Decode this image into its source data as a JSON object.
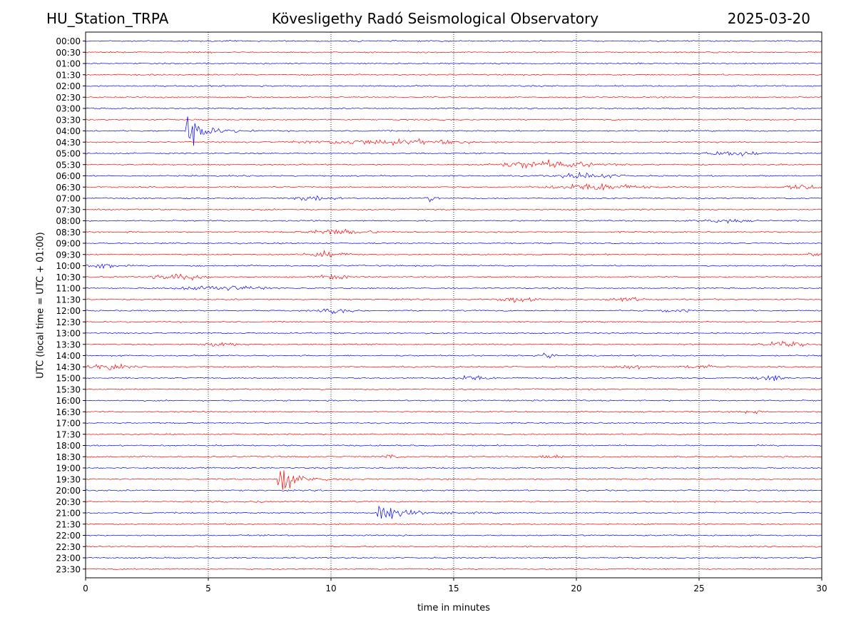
{
  "header": {
    "station": "HU_Station_TRPA",
    "title": "Kövesligethy Radó Seismological Observatory",
    "date": "2025-03-20"
  },
  "chart_data": {
    "type": "line",
    "title": "Kövesligethy Radó Seismological Observatory",
    "xlabel": "time in minutes",
    "ylabel": "UTC (local time = UTC + 01:00)",
    "xlim": [
      0,
      30
    ],
    "xticks": [
      "0",
      "5",
      "10",
      "15",
      "20",
      "25",
      "30"
    ],
    "grid": "vertical dotted at 5-minute intervals",
    "colors": [
      "#0000ff",
      "#ff0000"
    ],
    "rows": [
      "00:00",
      "00:30",
      "01:00",
      "01:30",
      "02:00",
      "02:30",
      "03:00",
      "03:30",
      "04:00",
      "04:30",
      "05:00",
      "05:30",
      "06:00",
      "06:30",
      "07:00",
      "07:30",
      "08:00",
      "08:30",
      "09:00",
      "09:30",
      "10:00",
      "10:30",
      "11:00",
      "11:30",
      "12:00",
      "12:30",
      "13:00",
      "13:30",
      "14:00",
      "14:30",
      "15:00",
      "15:30",
      "16:00",
      "16:30",
      "17:00",
      "17:30",
      "18:00",
      "18:30",
      "19:00",
      "19:30",
      "20:00",
      "20:30",
      "21:00",
      "21:30",
      "22:00",
      "22:30",
      "23:00",
      "23:30"
    ],
    "events": [
      {
        "row": "04:00",
        "start": 4.1,
        "duration": 3.0,
        "amplitude": 1.0,
        "type": "quake"
      },
      {
        "row": "04:30",
        "start": 8.5,
        "duration": 7.5,
        "amplitude": 0.3,
        "type": "burst"
      },
      {
        "row": "05:00",
        "start": 25.2,
        "duration": 2.5,
        "amplitude": 0.3,
        "type": "burst"
      },
      {
        "row": "05:30",
        "start": 16.5,
        "duration": 4.5,
        "amplitude": 0.45,
        "type": "burst"
      },
      {
        "row": "06:00",
        "start": 19.2,
        "duration": 2.5,
        "amplitude": 0.35,
        "type": "burst"
      },
      {
        "row": "06:30",
        "start": 18.8,
        "duration": 4.0,
        "amplitude": 0.4,
        "type": "burst"
      },
      {
        "row": "06:30",
        "start": 28.5,
        "duration": 1.5,
        "amplitude": 0.3,
        "type": "burst"
      },
      {
        "row": "07:00",
        "start": 8.2,
        "duration": 2.0,
        "amplitude": 0.3,
        "type": "burst"
      },
      {
        "row": "07:00",
        "start": 13.8,
        "duration": 0.6,
        "amplitude": 0.35,
        "type": "burst"
      },
      {
        "row": "08:00",
        "start": 25.0,
        "duration": 2.0,
        "amplitude": 0.2,
        "type": "burst"
      },
      {
        "row": "08:30",
        "start": 8.8,
        "duration": 3.0,
        "amplitude": 0.3,
        "type": "burst"
      },
      {
        "row": "09:30",
        "start": 8.8,
        "duration": 2.0,
        "amplitude": 0.3,
        "type": "burst"
      },
      {
        "row": "09:30",
        "start": 29.4,
        "duration": 0.6,
        "amplitude": 0.3,
        "type": "burst"
      },
      {
        "row": "10:00",
        "start": 0.0,
        "duration": 1.5,
        "amplitude": 0.35,
        "type": "burst"
      },
      {
        "row": "10:30",
        "start": 2.6,
        "duration": 2.5,
        "amplitude": 0.35,
        "type": "burst"
      },
      {
        "row": "10:30",
        "start": 9.5,
        "duration": 1.2,
        "amplitude": 0.35,
        "type": "burst"
      },
      {
        "row": "11:00",
        "start": 3.5,
        "duration": 4.0,
        "amplitude": 0.3,
        "type": "burst"
      },
      {
        "row": "11:30",
        "start": 16.8,
        "duration": 1.5,
        "amplitude": 0.35,
        "type": "burst"
      },
      {
        "row": "11:30",
        "start": 21.0,
        "duration": 2.0,
        "amplitude": 0.2,
        "type": "burst"
      },
      {
        "row": "12:00",
        "start": 9.5,
        "duration": 1.5,
        "amplitude": 0.25,
        "type": "burst"
      },
      {
        "row": "12:00",
        "start": 23.3,
        "duration": 1.5,
        "amplitude": 0.2,
        "type": "burst"
      },
      {
        "row": "13:30",
        "start": 4.8,
        "duration": 1.5,
        "amplitude": 0.3,
        "type": "burst"
      },
      {
        "row": "13:30",
        "start": 27.5,
        "duration": 2.0,
        "amplitude": 0.3,
        "type": "burst"
      },
      {
        "row": "14:00",
        "start": 18.3,
        "duration": 1.0,
        "amplitude": 0.3,
        "type": "burst"
      },
      {
        "row": "14:30",
        "start": 0.0,
        "duration": 1.8,
        "amplitude": 0.35,
        "type": "burst"
      },
      {
        "row": "14:30",
        "start": 21.5,
        "duration": 1.5,
        "amplitude": 0.25,
        "type": "burst"
      },
      {
        "row": "14:30",
        "start": 24.3,
        "duration": 1.5,
        "amplitude": 0.25,
        "type": "burst"
      },
      {
        "row": "15:00",
        "start": 15.0,
        "duration": 1.5,
        "amplitude": 0.3,
        "type": "burst"
      },
      {
        "row": "15:00",
        "start": 27.3,
        "duration": 1.3,
        "amplitude": 0.35,
        "type": "burst"
      },
      {
        "row": "16:30",
        "start": 26.5,
        "duration": 1.0,
        "amplitude": 0.2,
        "type": "burst"
      },
      {
        "row": "18:30",
        "start": 12.0,
        "duration": 0.8,
        "amplitude": 0.25,
        "type": "burst"
      },
      {
        "row": "18:30",
        "start": 18.5,
        "duration": 1.2,
        "amplitude": 0.25,
        "type": "burst"
      },
      {
        "row": "19:30",
        "start": 7.8,
        "duration": 3.5,
        "amplitude": 1.0,
        "type": "quake"
      },
      {
        "row": "20:30",
        "start": 6.8,
        "duration": 1.0,
        "amplitude": 0.15,
        "type": "burst"
      },
      {
        "row": "21:00",
        "start": 11.9,
        "duration": 5.0,
        "amplitude": 1.0,
        "type": "quake"
      }
    ]
  }
}
